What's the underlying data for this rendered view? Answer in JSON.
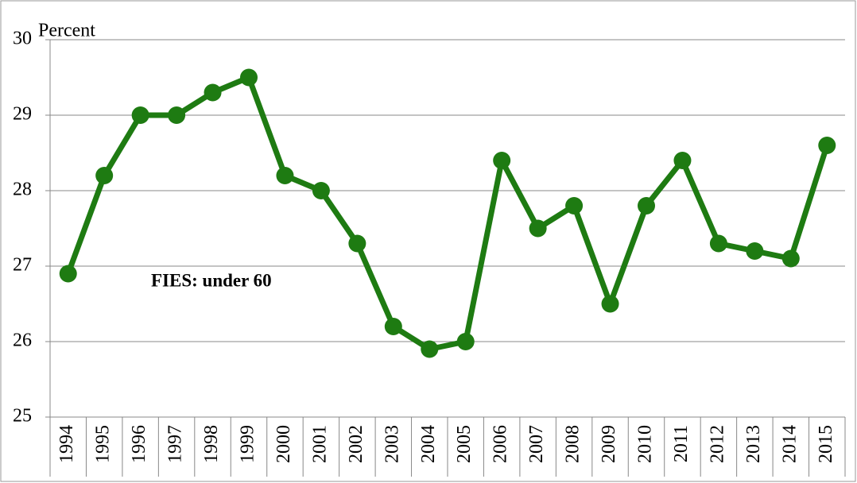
{
  "chart_data": {
    "type": "line",
    "y_label": "Percent",
    "annotation": "FIES: under 60",
    "categories": [
      "1994",
      "1995",
      "1996",
      "1997",
      "1998",
      "1999",
      "2000",
      "2001",
      "2002",
      "2003",
      "2004",
      "2005",
      "2006",
      "2007",
      "2008",
      "2009",
      "2010",
      "2011",
      "2012",
      "2013",
      "2014",
      "2015"
    ],
    "values": [
      26.9,
      28.2,
      29.0,
      29.0,
      29.3,
      29.5,
      28.2,
      28.0,
      27.3,
      26.2,
      25.9,
      26.0,
      28.4,
      27.5,
      27.8,
      26.5,
      27.8,
      28.4,
      27.3,
      27.2,
      27.1,
      28.6
    ],
    "color": "#1e7b12",
    "ylim": [
      25,
      30
    ],
    "yticks": [
      25,
      26,
      27,
      28,
      29,
      30
    ],
    "grid": true
  }
}
